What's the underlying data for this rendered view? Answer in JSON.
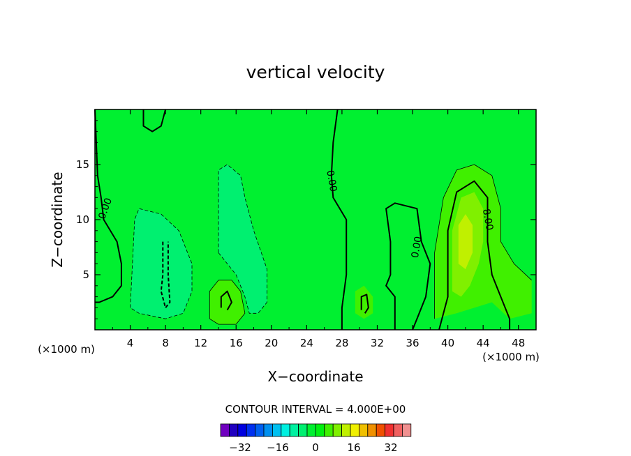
{
  "chart_data": {
    "type": "contour",
    "title": "vertical velocity",
    "xlabel": "X−coordinate",
    "ylabel": "Z−coordinate",
    "x_unit_left": "(×1000 m)",
    "x_unit_right": "(×1000 m)",
    "xlim": [
      0,
      50
    ],
    "ylim": [
      0,
      20
    ],
    "x_ticks": [
      4,
      8,
      12,
      16,
      20,
      24,
      28,
      32,
      36,
      40,
      44,
      48
    ],
    "y_ticks": [
      5,
      10,
      15
    ],
    "background_color": "#00f030",
    "contour_labels": [
      {
        "text": "0.00",
        "x": 1.2,
        "y": 11.0,
        "angle": -70
      },
      {
        "text": "0.00",
        "x": 26.8,
        "y": 13.5,
        "angle": 80
      },
      {
        "text": "0.00",
        "x": 36.5,
        "y": 7.5,
        "angle": -80
      },
      {
        "text": "8.00",
        "x": 44.5,
        "y": 10.0,
        "angle": 80
      }
    ],
    "regions": [
      {
        "level": -4,
        "color": "#00f070",
        "polygon": [
          [
            4,
            2
          ],
          [
            4.5,
            10
          ],
          [
            5,
            11
          ],
          [
            7.5,
            10.5
          ],
          [
            9.5,
            9
          ],
          [
            11,
            6
          ],
          [
            11,
            3.5
          ],
          [
            10,
            1.5
          ],
          [
            8,
            1
          ],
          [
            5,
            1.5
          ]
        ]
      },
      {
        "level": -4,
        "color": "#00f070",
        "polygon": [
          [
            14,
            7
          ],
          [
            14,
            14.5
          ],
          [
            15,
            15
          ],
          [
            16.5,
            14
          ],
          [
            17,
            12
          ],
          [
            18,
            9
          ],
          [
            19.5,
            5.5
          ],
          [
            19.5,
            2.5
          ],
          [
            18.5,
            1.5
          ],
          [
            17.5,
            1.5
          ],
          [
            17,
            3
          ],
          [
            16,
            5
          ],
          [
            15,
            6
          ]
        ]
      },
      {
        "level": 4,
        "color": "#40f000",
        "polygon": [
          [
            13,
            1
          ],
          [
            13,
            3.5
          ],
          [
            14,
            4.5
          ],
          [
            15.5,
            4.5
          ],
          [
            16.5,
            3.5
          ],
          [
            17,
            1.5
          ],
          [
            16,
            0.5
          ],
          [
            14,
            0.5
          ]
        ]
      },
      {
        "level": 4,
        "color": "#40f000",
        "polygon": [
          [
            29.5,
            1.5
          ],
          [
            29.5,
            3.5
          ],
          [
            30.5,
            4
          ],
          [
            31.5,
            3
          ],
          [
            31.5,
            1.5
          ],
          [
            30.5,
            1
          ]
        ]
      },
      {
        "level": 4,
        "color": "#40f000",
        "polygon": [
          [
            38.5,
            1
          ],
          [
            38.5,
            7
          ],
          [
            39.5,
            12
          ],
          [
            41,
            14.5
          ],
          [
            43,
            15
          ],
          [
            45,
            14
          ],
          [
            46,
            11
          ],
          [
            46,
            8
          ],
          [
            47.5,
            6
          ],
          [
            49.5,
            4.5
          ],
          [
            49.5,
            1.5
          ],
          [
            47,
            1
          ],
          [
            45,
            2.5
          ],
          [
            43,
            2
          ],
          [
            41,
            1.5
          ]
        ]
      },
      {
        "level": 8,
        "color": "#80f000",
        "polygon": [
          [
            40.5,
            3.5
          ],
          [
            40.5,
            9
          ],
          [
            41.5,
            12
          ],
          [
            43,
            12.5
          ],
          [
            44,
            11
          ],
          [
            44,
            8
          ],
          [
            43.5,
            6
          ],
          [
            42.5,
            4
          ],
          [
            41.5,
            3
          ]
        ]
      },
      {
        "level": 12,
        "color": "#c0f000",
        "polygon": [
          [
            41.2,
            6
          ],
          [
            41.2,
            9.5
          ],
          [
            42,
            10.5
          ],
          [
            42.8,
            9.5
          ],
          [
            42.8,
            7
          ],
          [
            42,
            5.5
          ]
        ]
      }
    ],
    "contours": [
      {
        "style": "solid",
        "weight": 2,
        "points": [
          [
            0,
            20
          ],
          [
            0.3,
            14
          ],
          [
            0.7,
            12
          ],
          [
            1,
            10
          ],
          [
            2.5,
            8
          ],
          [
            3,
            6
          ],
          [
            3,
            4
          ],
          [
            2,
            3
          ],
          [
            0.5,
            2.5
          ],
          [
            0,
            2.5
          ]
        ]
      },
      {
        "style": "solid",
        "weight": 2,
        "points": [
          [
            5.5,
            20
          ],
          [
            5.5,
            18.5
          ],
          [
            6.5,
            18
          ],
          [
            7.5,
            18.5
          ],
          [
            8,
            20
          ]
        ]
      },
      {
        "style": "solid",
        "weight": 2,
        "points": [
          [
            27.5,
            20
          ],
          [
            27,
            17
          ],
          [
            26.8,
            14
          ],
          [
            27,
            12
          ],
          [
            28.5,
            10
          ],
          [
            28.5,
            5
          ],
          [
            28,
            2
          ],
          [
            28,
            0
          ]
        ]
      },
      {
        "style": "solid",
        "weight": 2,
        "points": [
          [
            34,
            0
          ],
          [
            34,
            3
          ],
          [
            33,
            4
          ],
          [
            33.5,
            5
          ],
          [
            33.5,
            8
          ],
          [
            33,
            11
          ],
          [
            34,
            11.5
          ],
          [
            36.5,
            11
          ],
          [
            37,
            8
          ],
          [
            38,
            6
          ],
          [
            37.5,
            3
          ],
          [
            36.5,
            1
          ],
          [
            36,
            0
          ]
        ]
      },
      {
        "style": "solid",
        "weight": 2,
        "points": [
          [
            39,
            0
          ],
          [
            40,
            3
          ],
          [
            40,
            9
          ],
          [
            41,
            12.5
          ],
          [
            43,
            13.5
          ],
          [
            44.5,
            12
          ],
          [
            44.5,
            8
          ],
          [
            45,
            5
          ],
          [
            46,
            3
          ],
          [
            47,
            1
          ],
          [
            47,
            0
          ]
        ]
      },
      {
        "style": "solid",
        "weight": 2,
        "points": [
          [
            14.3,
            2
          ],
          [
            14.3,
            3
          ],
          [
            15,
            3.5
          ],
          [
            15.5,
            2.5
          ],
          [
            15,
            1.8
          ]
        ]
      },
      {
        "style": "solid",
        "weight": 2,
        "points": [
          [
            30.2,
            1.8
          ],
          [
            30.2,
            3
          ],
          [
            30.8,
            3.2
          ],
          [
            31,
            2
          ],
          [
            30.6,
            1.5
          ]
        ]
      },
      {
        "style": "thin",
        "weight": 0.8,
        "points": [
          [
            13,
            1
          ],
          [
            13,
            3.5
          ],
          [
            14,
            4.5
          ],
          [
            15.5,
            4.5
          ],
          [
            16.5,
            3.5
          ],
          [
            17,
            1.5
          ],
          [
            16,
            0.5
          ],
          [
            14,
            0.5
          ],
          [
            13,
            1
          ]
        ]
      },
      {
        "style": "thin",
        "weight": 0.8,
        "points": [
          [
            38.5,
            1
          ],
          [
            38.5,
            7
          ],
          [
            39.5,
            12
          ],
          [
            41,
            14.5
          ],
          [
            43,
            15
          ],
          [
            45,
            14
          ],
          [
            46,
            11
          ],
          [
            46,
            8
          ],
          [
            47.5,
            6
          ],
          [
            49.5,
            4.5
          ]
        ]
      },
      {
        "style": "dashed",
        "weight": 0.8,
        "points": [
          [
            4,
            2
          ],
          [
            4.5,
            10
          ],
          [
            5,
            11
          ],
          [
            7.5,
            10.5
          ],
          [
            9.5,
            9
          ],
          [
            11,
            6
          ],
          [
            11,
            3.5
          ],
          [
            10,
            1.5
          ],
          [
            8,
            1
          ],
          [
            5,
            1.5
          ],
          [
            4,
            2
          ]
        ]
      },
      {
        "style": "dashed",
        "weight": 0.8,
        "points": [
          [
            14,
            7
          ],
          [
            14,
            14.5
          ],
          [
            15,
            15
          ],
          [
            16.5,
            14
          ],
          [
            17,
            12
          ],
          [
            18,
            9
          ],
          [
            19.5,
            5.5
          ],
          [
            19.5,
            2.5
          ],
          [
            18.5,
            1.5
          ],
          [
            17.5,
            1.5
          ],
          [
            17,
            3
          ],
          [
            16,
            5
          ],
          [
            15,
            6
          ],
          [
            14,
            7
          ]
        ]
      },
      {
        "style": "dashed",
        "weight": 2,
        "points": [
          [
            7.7,
            8
          ],
          [
            7.7,
            5
          ],
          [
            7.5,
            3.5
          ],
          [
            8,
            2
          ],
          [
            8.5,
            2.5
          ],
          [
            8.3,
            5
          ],
          [
            8.3,
            8
          ]
        ]
      }
    ]
  },
  "footer": {
    "interval_text": "CONTOUR INTERVAL = 4.000E+00",
    "colorbar_colors": [
      "#7000c0",
      "#2000c0",
      "#0000e0",
      "#0030f0",
      "#0060f0",
      "#0090f0",
      "#00c0f0",
      "#00f0e0",
      "#00f0a0",
      "#00f070",
      "#00f030",
      "#00f010",
      "#40f000",
      "#80f000",
      "#c0f000",
      "#f0f000",
      "#f0c000",
      "#f09000",
      "#f05000",
      "#f03030",
      "#f06060",
      "#f09090"
    ],
    "colorbar_labels": [
      "−32",
      "−16",
      "0",
      "16",
      "32"
    ]
  }
}
